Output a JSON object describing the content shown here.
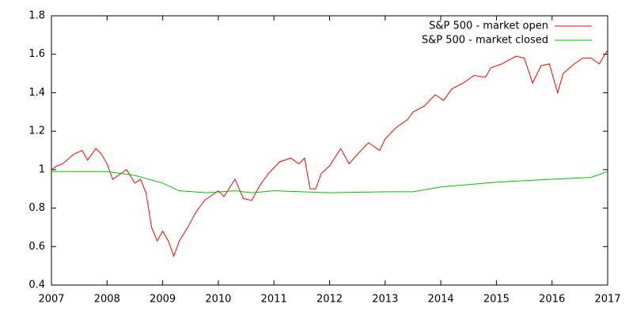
{
  "chart_data": {
    "type": "line",
    "xlim": [
      2007,
      2017
    ],
    "xticks": [
      2007,
      2008,
      2009,
      2010,
      2011,
      2012,
      2013,
      2014,
      2015,
      2016,
      2017
    ],
    "ylim": [
      0.4,
      1.8
    ],
    "yticks": [
      0.4,
      0.6,
      0.8,
      1,
      1.2,
      1.4,
      1.6,
      1.8
    ],
    "legend": "top-right",
    "grid": false,
    "series": [
      {
        "name": "S&P 500 - market open",
        "color": "#ff0000",
        "x": [
          2007.0,
          2007.1,
          2007.2,
          2007.4,
          2007.55,
          2007.65,
          2007.8,
          2007.9,
          2008.0,
          2008.1,
          2008.25,
          2008.35,
          2008.5,
          2008.6,
          2008.7,
          2008.8,
          2008.9,
          2009.0,
          2009.1,
          2009.2,
          2009.3,
          2009.45,
          2009.6,
          2009.75,
          2009.9,
          2010.0,
          2010.1,
          2010.3,
          2010.45,
          2010.6,
          2010.75,
          2010.9,
          2011.1,
          2011.3,
          2011.45,
          2011.55,
          2011.65,
          2011.75,
          2011.85,
          2012.0,
          2012.2,
          2012.35,
          2012.5,
          2012.7,
          2012.9,
          2013.0,
          2013.2,
          2013.4,
          2013.5,
          2013.7,
          2013.9,
          2014.05,
          2014.2,
          2014.4,
          2014.6,
          2014.8,
          2014.9,
          2015.1,
          2015.35,
          2015.5,
          2015.65,
          2015.8,
          2015.95,
          2016.1,
          2016.2,
          2016.4,
          2016.55,
          2016.7,
          2016.85,
          2016.95,
          2017.0
        ],
        "values": [
          1.0,
          1.02,
          1.03,
          1.08,
          1.1,
          1.05,
          1.11,
          1.08,
          1.03,
          0.95,
          0.98,
          1.0,
          0.93,
          0.95,
          0.88,
          0.7,
          0.63,
          0.68,
          0.63,
          0.55,
          0.63,
          0.7,
          0.78,
          0.84,
          0.87,
          0.89,
          0.86,
          0.95,
          0.85,
          0.84,
          0.92,
          0.98,
          1.04,
          1.06,
          1.03,
          1.06,
          0.9,
          0.9,
          0.98,
          1.02,
          1.11,
          1.03,
          1.08,
          1.14,
          1.1,
          1.16,
          1.22,
          1.26,
          1.3,
          1.33,
          1.39,
          1.36,
          1.42,
          1.45,
          1.49,
          1.48,
          1.53,
          1.55,
          1.59,
          1.58,
          1.45,
          1.54,
          1.55,
          1.4,
          1.5,
          1.55,
          1.58,
          1.58,
          1.55,
          1.6,
          1.62
        ]
      },
      {
        "name": "S&P 500 - market closed",
        "color": "#00c000",
        "x": [
          2007.0,
          2008.0,
          2008.5,
          2009.0,
          2009.3,
          2009.8,
          2010.3,
          2010.6,
          2011.0,
          2012.0,
          2013.0,
          2013.5,
          2014.0,
          2015.0,
          2016.0,
          2016.7,
          2017.0
        ],
        "values": [
          0.99,
          0.99,
          0.97,
          0.93,
          0.89,
          0.88,
          0.89,
          0.88,
          0.89,
          0.88,
          0.885,
          0.885,
          0.91,
          0.935,
          0.95,
          0.96,
          0.99
        ]
      }
    ]
  }
}
